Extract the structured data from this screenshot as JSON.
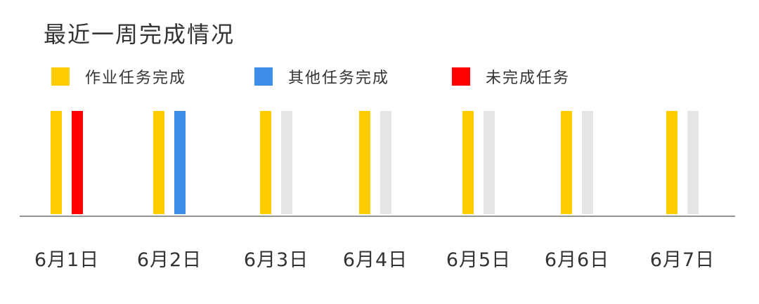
{
  "chart_data": {
    "type": "bar",
    "title": "最近一周完成情况",
    "xlabel": "",
    "ylabel": "",
    "grid": false,
    "legend_position": "top",
    "categories": [
      "6月1日",
      "6月2日",
      "6月3日",
      "6月4日",
      "6月5日",
      "6月6日",
      "6月7日"
    ],
    "ylim": [
      0,
      1
    ],
    "legend": [
      {
        "label": "作业任务完成",
        "color": "#FFCC00"
      },
      {
        "label": "其他任务完成",
        "color": "#3D8FEA"
      },
      {
        "label": "未完成任务",
        "color": "#FF0000"
      }
    ],
    "bars": [
      {
        "left": {
          "value": 1,
          "color": "#FFCC00"
        },
        "right": {
          "value": 1,
          "color": "#FF0000"
        }
      },
      {
        "left": {
          "value": 1,
          "color": "#FFCC00"
        },
        "right": {
          "value": 1,
          "color": "#3D8FEA"
        }
      },
      {
        "left": {
          "value": 1,
          "color": "#FFCC00"
        },
        "right": {
          "value": 1,
          "color": "#E5E5E5"
        }
      },
      {
        "left": {
          "value": 1,
          "color": "#FFCC00"
        },
        "right": {
          "value": 1,
          "color": "#E5E5E5"
        }
      },
      {
        "left": {
          "value": 1,
          "color": "#FFCC00"
        },
        "right": {
          "value": 1,
          "color": "#E5E5E5"
        }
      },
      {
        "left": {
          "value": 1,
          "color": "#FFCC00"
        },
        "right": {
          "value": 1,
          "color": "#E5E5E5"
        }
      },
      {
        "left": {
          "value": 1,
          "color": "#FFCC00"
        },
        "right": {
          "value": 1,
          "color": "#E5E5E5"
        }
      }
    ]
  }
}
